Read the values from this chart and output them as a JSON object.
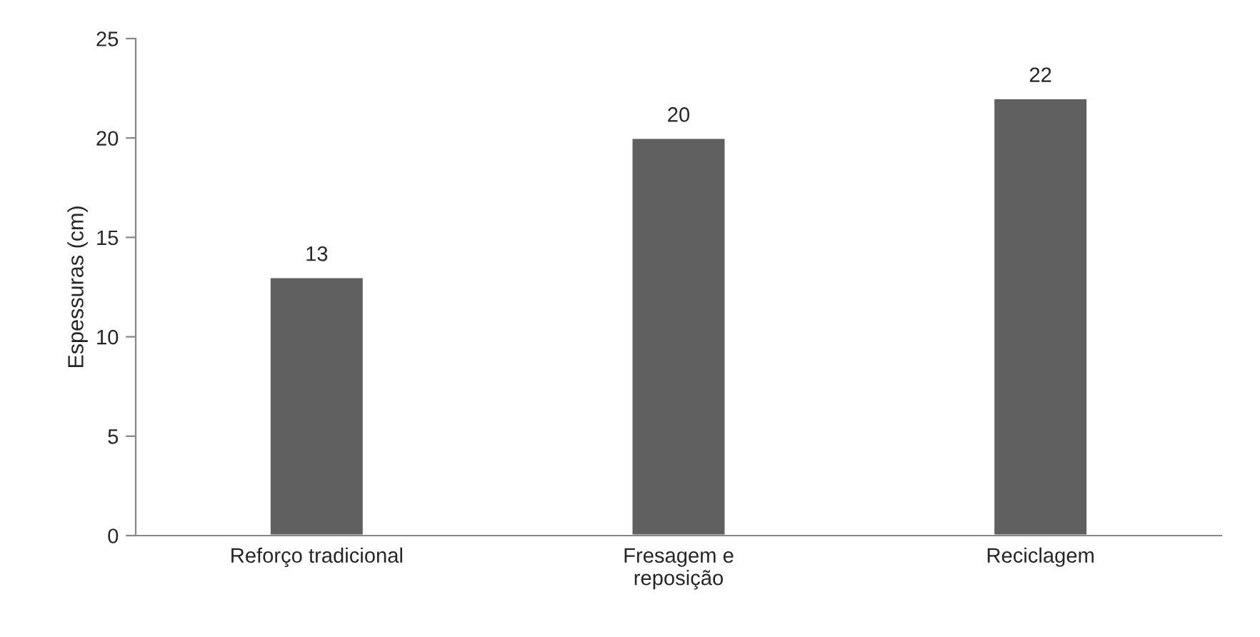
{
  "chart_data": {
    "type": "bar",
    "categories": [
      "Reforço tradicional",
      "Fresagem e\nreposição",
      "Reciclagem"
    ],
    "values": [
      13,
      20,
      22
    ],
    "color": "#606060",
    "ylabel": "Espessuras (cm)",
    "ylim": [
      0,
      25
    ],
    "yticks": [
      0,
      5,
      10,
      15,
      20,
      25
    ],
    "data_labels": true,
    "grid": false,
    "legend": false
  }
}
